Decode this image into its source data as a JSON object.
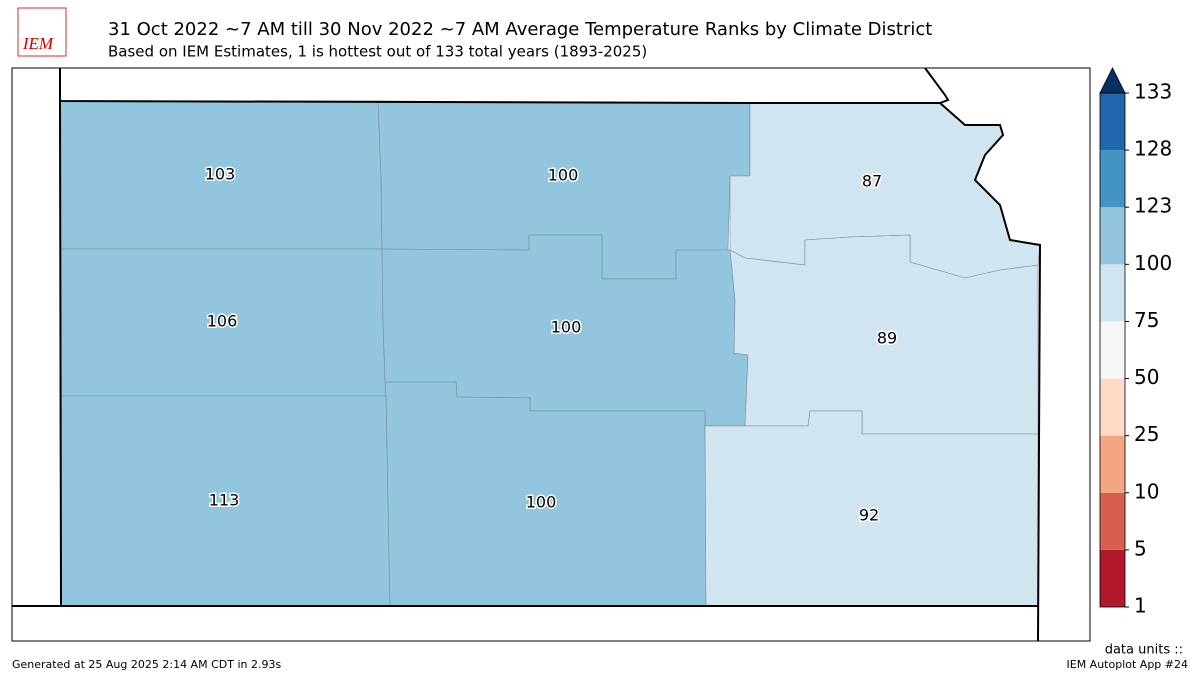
{
  "header": {
    "logo": "IEM",
    "title": "31 Oct 2022 ~7 AM till 30 Nov 2022 ~7 AM Average Temperature Ranks by Climate District",
    "subtitle": "Based on IEM Estimates, 1 is hottest out of 133 total years (1893-2025)"
  },
  "districts": [
    {
      "id": "NW",
      "value": 103
    },
    {
      "id": "NC",
      "value": 100
    },
    {
      "id": "NE",
      "value": 87
    },
    {
      "id": "WC",
      "value": 106
    },
    {
      "id": "C",
      "value": 100
    },
    {
      "id": "EC",
      "value": 89
    },
    {
      "id": "SW",
      "value": 113
    },
    {
      "id": "SC",
      "value": 100
    },
    {
      "id": "SE",
      "value": 92
    }
  ],
  "colorbar": {
    "levels": [
      1,
      5,
      10,
      25,
      50,
      75,
      100,
      123,
      128,
      133
    ],
    "colors": [
      "#b2182b",
      "#d6604d",
      "#f4a582",
      "#fddbc7",
      "#f7f7f7",
      "#d1e5f0",
      "#92c5de",
      "#4393c3",
      "#2166ac"
    ],
    "extend_color": "#053061",
    "units": "data units ::"
  },
  "footer": {
    "left": "Generated at 25 Aug 2025 2:14 AM CDT in 2.93s",
    "right": "IEM Autoplot App #24"
  }
}
